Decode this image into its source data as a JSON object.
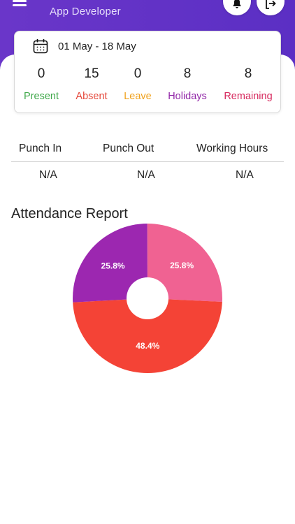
{
  "header": {
    "role": "App Developer",
    "menu_icon": "hamburger-icon",
    "bell_icon": "bell-icon",
    "logout_icon": "logout-icon",
    "color": "#5b2fc4"
  },
  "summary": {
    "date_range": "01 May - 18 May",
    "stats": [
      {
        "value": "0",
        "label": "Present",
        "color": "#3fa84a"
      },
      {
        "value": "15",
        "label": "Absent",
        "color": "#e5483b"
      },
      {
        "value": "0",
        "label": "Leave",
        "color": "#f0a11c"
      },
      {
        "value": "8",
        "label": "Holidays",
        "color": "#9227a8"
      },
      {
        "value": "8",
        "label": "Remaining",
        "color": "#d6285d"
      }
    ]
  },
  "punch": {
    "headers": [
      "Punch In",
      "Punch Out",
      "Working Hours"
    ],
    "values": [
      "N/A",
      "N/A",
      "N/A"
    ]
  },
  "report": {
    "title": "Attendance Report"
  },
  "chart_data": {
    "type": "pie",
    "title": "",
    "donut": true,
    "slices": [
      {
        "label": "25.8%",
        "value": 25.8,
        "color": "#f06292"
      },
      {
        "label": "48.4%",
        "value": 48.4,
        "color": "#f44336"
      },
      {
        "label": "25.8%",
        "value": 25.8,
        "color": "#9c27b0"
      }
    ]
  }
}
